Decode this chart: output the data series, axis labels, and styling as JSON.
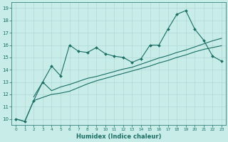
{
  "xlabel": "Humidex (Indice chaleur)",
  "background_color": "#c8ece8",
  "grid_color": "#b0d8d4",
  "line_color": "#1a6e64",
  "xlim": [
    -0.5,
    23.5
  ],
  "ylim": [
    9.5,
    19.5
  ],
  "xticks": [
    0,
    1,
    2,
    3,
    4,
    5,
    6,
    7,
    8,
    9,
    10,
    11,
    12,
    13,
    14,
    15,
    16,
    17,
    18,
    19,
    20,
    21,
    22,
    23
  ],
  "yticks": [
    10,
    11,
    12,
    13,
    14,
    15,
    16,
    17,
    18,
    19
  ],
  "line1_x": [
    0,
    1,
    2,
    3,
    4,
    5,
    6,
    7,
    8,
    9,
    10,
    11,
    12,
    13,
    14,
    15,
    16,
    17,
    18,
    19,
    20,
    21,
    22,
    23
  ],
  "line1_y": [
    10.0,
    9.8,
    11.5,
    13.0,
    14.3,
    13.5,
    16.0,
    15.5,
    15.4,
    15.8,
    15.3,
    15.1,
    15.0,
    14.6,
    14.9,
    16.0,
    16.0,
    17.3,
    18.5,
    18.8,
    17.3,
    16.4,
    15.1,
    14.7
  ],
  "line2_x": [
    2,
    3,
    4,
    5,
    6,
    7,
    8,
    9,
    10,
    11,
    12,
    13,
    14,
    15,
    16,
    17,
    18,
    19,
    20,
    21,
    22,
    23
  ],
  "line2_y": [
    11.8,
    13.0,
    12.3,
    12.6,
    12.8,
    13.05,
    13.3,
    13.45,
    13.65,
    13.85,
    14.05,
    14.2,
    14.45,
    14.7,
    14.95,
    15.15,
    15.4,
    15.6,
    15.85,
    16.1,
    16.35,
    16.55
  ],
  "line3_x": [
    0,
    1,
    2,
    3,
    4,
    5,
    6,
    7,
    8,
    9,
    10,
    11,
    12,
    13,
    14,
    15,
    16,
    17,
    18,
    19,
    20,
    21,
    22,
    23
  ],
  "line3_y": [
    10.0,
    9.8,
    11.5,
    11.75,
    12.0,
    12.1,
    12.25,
    12.55,
    12.85,
    13.1,
    13.3,
    13.5,
    13.7,
    13.9,
    14.1,
    14.3,
    14.55,
    14.75,
    15.0,
    15.2,
    15.45,
    15.65,
    15.8,
    15.95
  ]
}
